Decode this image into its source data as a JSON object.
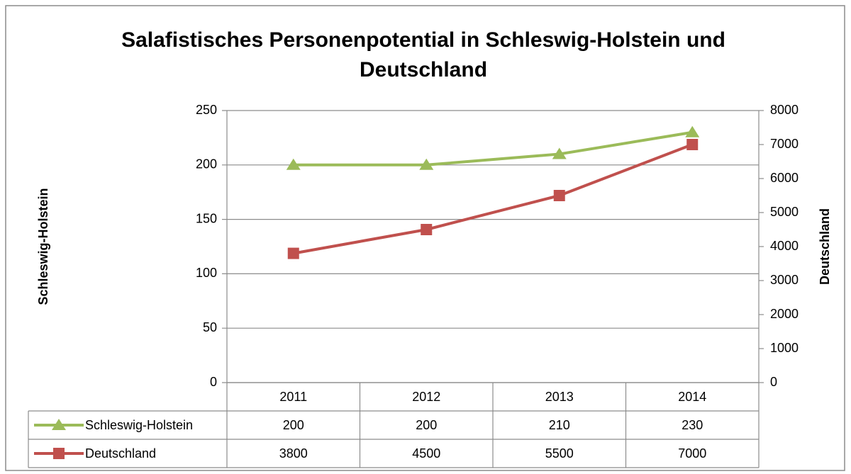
{
  "chart_data": {
    "type": "line",
    "title": [
      "Salafistisches Personenpotential in Schleswig-Holstein und",
      "Deutschland"
    ],
    "y_label": "Schleswig-Holstein",
    "y2_label": "Deutschland",
    "categories": [
      "2011",
      "2012",
      "2013",
      "2014"
    ],
    "series": [
      {
        "name": "Schleswig-Holstein",
        "color": "#9bbb59",
        "marker": "triangle",
        "axis": "y",
        "values": [
          200,
          200,
          210,
          230
        ]
      },
      {
        "name": "Deutschland",
        "color": "#c0504d",
        "marker": "square",
        "axis": "y2",
        "values": [
          3800,
          4500,
          5500,
          7000
        ]
      }
    ],
    "ylim": [
      0,
      250
    ],
    "yticks": [
      0,
      50,
      100,
      150,
      200,
      250
    ],
    "y2lim": [
      0,
      8000
    ],
    "y2ticks": [
      0,
      1000,
      2000,
      3000,
      4000,
      5000,
      6000,
      7000,
      8000
    ],
    "grid": true,
    "data_table": true
  }
}
